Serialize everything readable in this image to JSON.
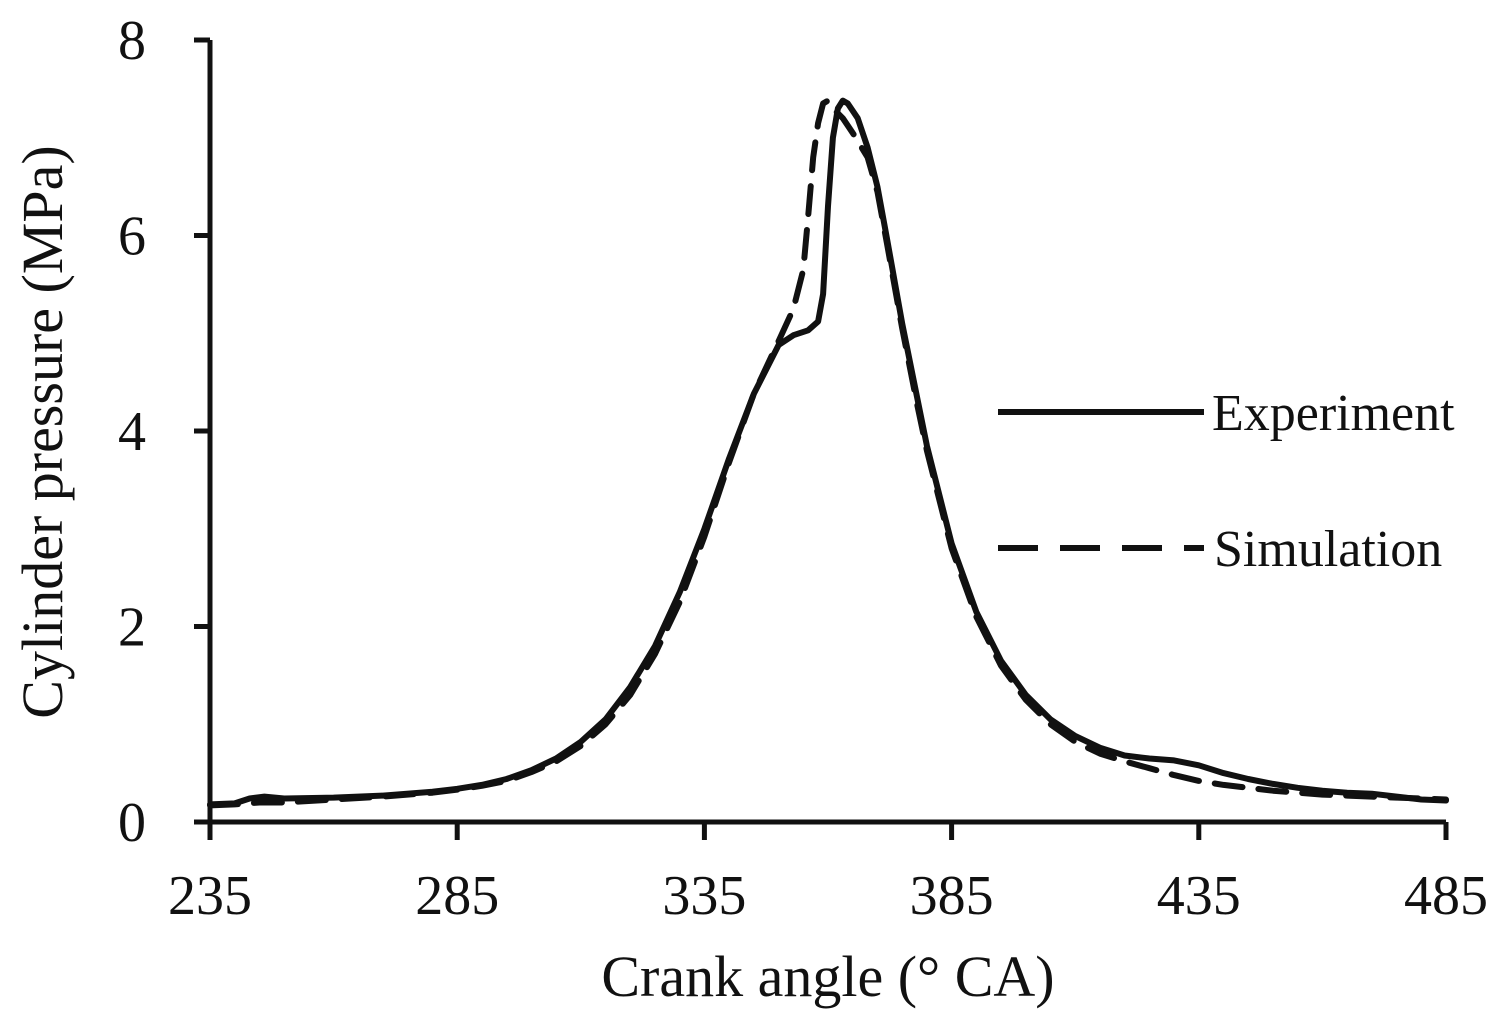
{
  "chart_data": {
    "type": "line",
    "title": "",
    "xlabel": "Crank angle (° CA)",
    "ylabel": "Cylinder pressure (MPa)",
    "xlim": [
      235,
      485
    ],
    "ylim": [
      0,
      8
    ],
    "x_ticks": [
      235,
      285,
      335,
      385,
      435,
      485
    ],
    "y_ticks": [
      0,
      2,
      4,
      6,
      8
    ],
    "grid": false,
    "legend_position": "right",
    "series": [
      {
        "name": "Experiment",
        "style": "solid",
        "color": "#111111",
        "points": [
          [
            235,
            0.18
          ],
          [
            240,
            0.19
          ],
          [
            243,
            0.24
          ],
          [
            246,
            0.26
          ],
          [
            250,
            0.24
          ],
          [
            260,
            0.25
          ],
          [
            270,
            0.27
          ],
          [
            280,
            0.31
          ],
          [
            285,
            0.34
          ],
          [
            290,
            0.38
          ],
          [
            295,
            0.44
          ],
          [
            300,
            0.53
          ],
          [
            305,
            0.65
          ],
          [
            310,
            0.82
          ],
          [
            315,
            1.05
          ],
          [
            320,
            1.38
          ],
          [
            325,
            1.8
          ],
          [
            330,
            2.35
          ],
          [
            335,
            3.0
          ],
          [
            340,
            3.72
          ],
          [
            345,
            4.38
          ],
          [
            350,
            4.88
          ],
          [
            353,
            4.98
          ],
          [
            356,
            5.03
          ],
          [
            358,
            5.12
          ],
          [
            359,
            5.4
          ],
          [
            360,
            6.3
          ],
          [
            361,
            7.0
          ],
          [
            362,
            7.3
          ],
          [
            363,
            7.38
          ],
          [
            364,
            7.35
          ],
          [
            366,
            7.2
          ],
          [
            368,
            6.9
          ],
          [
            370,
            6.5
          ],
          [
            372,
            5.95
          ],
          [
            375,
            5.1
          ],
          [
            378,
            4.35
          ],
          [
            380,
            3.85
          ],
          [
            385,
            2.85
          ],
          [
            390,
            2.15
          ],
          [
            395,
            1.65
          ],
          [
            400,
            1.3
          ],
          [
            405,
            1.05
          ],
          [
            410,
            0.88
          ],
          [
            415,
            0.76
          ],
          [
            420,
            0.68
          ],
          [
            425,
            0.65
          ],
          [
            430,
            0.63
          ],
          [
            435,
            0.58
          ],
          [
            440,
            0.5
          ],
          [
            445,
            0.44
          ],
          [
            450,
            0.39
          ],
          [
            455,
            0.35
          ],
          [
            460,
            0.32
          ],
          [
            465,
            0.3
          ],
          [
            470,
            0.29
          ],
          [
            475,
            0.26
          ],
          [
            480,
            0.23
          ],
          [
            485,
            0.22
          ]
        ]
      },
      {
        "name": "Simulation",
        "style": "dashed",
        "color": "#111111",
        "points": [
          [
            235,
            0.17
          ],
          [
            240,
            0.18
          ],
          [
            245,
            0.2
          ],
          [
            250,
            0.2
          ],
          [
            260,
            0.23
          ],
          [
            270,
            0.26
          ],
          [
            280,
            0.3
          ],
          [
            285,
            0.33
          ],
          [
            290,
            0.37
          ],
          [
            295,
            0.42
          ],
          [
            300,
            0.51
          ],
          [
            305,
            0.62
          ],
          [
            310,
            0.78
          ],
          [
            315,
            1.0
          ],
          [
            320,
            1.3
          ],
          [
            325,
            1.72
          ],
          [
            330,
            2.25
          ],
          [
            335,
            2.92
          ],
          [
            340,
            3.68
          ],
          [
            345,
            4.38
          ],
          [
            350,
            4.92
          ],
          [
            353,
            5.25
          ],
          [
            355,
            5.65
          ],
          [
            356,
            6.2
          ],
          [
            357,
            6.8
          ],
          [
            358,
            7.15
          ],
          [
            359,
            7.35
          ],
          [
            360,
            7.38
          ],
          [
            361,
            7.3
          ],
          [
            363,
            7.2
          ],
          [
            365,
            7.05
          ],
          [
            368,
            6.8
          ],
          [
            370,
            6.45
          ],
          [
            372,
            5.9
          ],
          [
            375,
            5.05
          ],
          [
            378,
            4.28
          ],
          [
            380,
            3.8
          ],
          [
            385,
            2.8
          ],
          [
            390,
            2.1
          ],
          [
            395,
            1.6
          ],
          [
            400,
            1.25
          ],
          [
            405,
            1.0
          ],
          [
            410,
            0.82
          ],
          [
            415,
            0.7
          ],
          [
            420,
            0.62
          ],
          [
            425,
            0.55
          ],
          [
            430,
            0.48
          ],
          [
            435,
            0.42
          ],
          [
            440,
            0.38
          ],
          [
            445,
            0.35
          ],
          [
            450,
            0.32
          ],
          [
            455,
            0.3
          ],
          [
            460,
            0.28
          ],
          [
            465,
            0.27
          ],
          [
            470,
            0.26
          ],
          [
            475,
            0.25
          ],
          [
            480,
            0.24
          ],
          [
            485,
            0.23
          ]
        ]
      }
    ]
  }
}
